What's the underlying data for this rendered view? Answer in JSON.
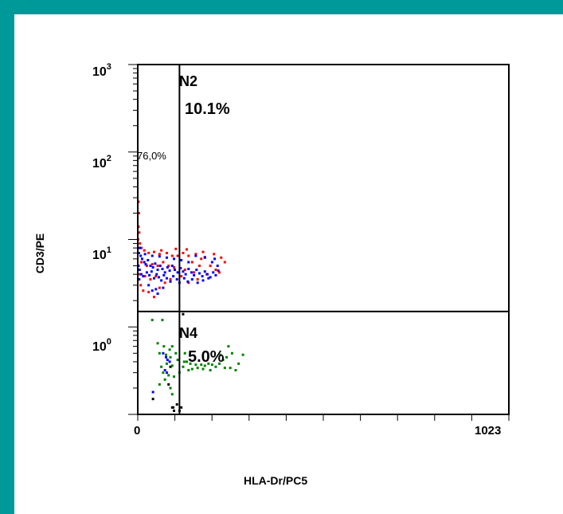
{
  "chart_data": {
    "type": "scatter",
    "xlabel": "HLA-Dr/PC5",
    "ylabel": "CD3/PE",
    "x_axis": {
      "scale": "linear",
      "range": [
        0,
        1023
      ],
      "tick_labels": [
        "0",
        "1023"
      ]
    },
    "y_axis": {
      "scale": "log",
      "range": [
        0.1,
        1000
      ],
      "tick_labels": [
        {
          "base": "10",
          "exp": "0"
        },
        {
          "base": "10",
          "exp": "1"
        },
        {
          "base": "10",
          "exp": "2"
        },
        {
          "base": "10",
          "exp": "3"
        }
      ]
    },
    "grid": false,
    "quadrant_gates": {
      "x": 115,
      "y": 1.5
    },
    "annotations": {
      "n2_label": "N2",
      "n2_pct": "10.1%",
      "n1_pct": "76,0%",
      "n4_label": "N4",
      "n4_pct": "5.0%"
    },
    "series_colors": {
      "red": "#ff0000",
      "blue": "#0000ff",
      "green": "#008000",
      "black": "#000000"
    },
    "series": [
      {
        "color": "red",
        "points": [
          [
            2,
            27
          ],
          [
            3,
            20
          ],
          [
            2,
            14
          ],
          [
            4,
            12
          ],
          [
            1,
            10
          ],
          [
            6,
            9
          ],
          [
            3,
            8
          ],
          [
            10,
            8
          ],
          [
            18,
            7.5
          ],
          [
            30,
            7
          ],
          [
            45,
            7.2
          ],
          [
            60,
            6.8
          ],
          [
            80,
            7
          ],
          [
            95,
            6.5
          ],
          [
            110,
            6.5
          ],
          [
            125,
            7
          ],
          [
            140,
            6.5
          ],
          [
            160,
            6.8
          ],
          [
            175,
            6
          ],
          [
            185,
            6.3
          ],
          [
            150,
            5.5
          ],
          [
            170,
            5
          ],
          [
            200,
            5
          ],
          [
            215,
            4.5
          ],
          [
            225,
            4.2
          ],
          [
            10,
            5.5
          ],
          [
            25,
            5
          ],
          [
            40,
            5.2
          ],
          [
            55,
            5
          ],
          [
            70,
            5.5
          ],
          [
            85,
            5
          ],
          [
            100,
            4.8
          ],
          [
            130,
            4.5
          ],
          [
            155,
            4.2
          ],
          [
            190,
            4
          ],
          [
            20,
            3.8
          ],
          [
            35,
            3.5
          ],
          [
            50,
            3.8
          ],
          [
            75,
            3.2
          ],
          [
            90,
            3.5
          ],
          [
            120,
            3.8
          ],
          [
            140,
            3.2
          ],
          [
            165,
            3.5
          ],
          [
            60,
            2.8
          ],
          [
            30,
            2.5
          ],
          [
            45,
            2.2
          ],
          [
            15,
            2.6
          ],
          [
            8,
            3
          ],
          [
            5,
            4
          ],
          [
            65,
            7.5
          ],
          [
            105,
            7.8
          ],
          [
            135,
            7.7
          ],
          [
            180,
            7.2
          ],
          [
            210,
            6.8
          ],
          [
            230,
            6.2
          ],
          [
            240,
            5.5
          ]
        ]
      },
      {
        "color": "blue",
        "points": [
          [
            3,
            7
          ],
          [
            8,
            6.5
          ],
          [
            12,
            6
          ],
          [
            18,
            5.5
          ],
          [
            22,
            5.2
          ],
          [
            28,
            5.8
          ],
          [
            35,
            5
          ],
          [
            42,
            4.8
          ],
          [
            48,
            5.3
          ],
          [
            55,
            4.5
          ],
          [
            62,
            5
          ],
          [
            68,
            4.6
          ],
          [
            75,
            4.2
          ],
          [
            82,
            4.8
          ],
          [
            88,
            4.4
          ],
          [
            95,
            5
          ],
          [
            102,
            4.5
          ],
          [
            110,
            4.2
          ],
          [
            118,
            4.7
          ],
          [
            125,
            4.3
          ],
          [
            132,
            4
          ],
          [
            140,
            4.6
          ],
          [
            148,
            4.2
          ],
          [
            155,
            3.9
          ],
          [
            162,
            4.5
          ],
          [
            170,
            4.1
          ],
          [
            178,
            3.8
          ],
          [
            185,
            4.3
          ],
          [
            192,
            4
          ],
          [
            200,
            3.7
          ],
          [
            208,
            4.2
          ],
          [
            215,
            3.9
          ],
          [
            222,
            4.4
          ],
          [
            5,
            4.5
          ],
          [
            10,
            4
          ],
          [
            15,
            3.8
          ],
          [
            25,
            4.2
          ],
          [
            32,
            3.9
          ],
          [
            38,
            4.3
          ],
          [
            45,
            3.6
          ],
          [
            52,
            4
          ],
          [
            58,
            3.7
          ],
          [
            65,
            3.4
          ],
          [
            72,
            3.9
          ],
          [
            80,
            3.6
          ],
          [
            90,
            3.3
          ],
          [
            98,
            3.8
          ],
          [
            108,
            3.5
          ],
          [
            115,
            3.2
          ],
          [
            128,
            3.6
          ],
          [
            138,
            3.3
          ],
          [
            150,
            3.5
          ],
          [
            165,
            3.2
          ],
          [
            180,
            3.4
          ],
          [
            195,
            3.6
          ],
          [
            205,
            5.5
          ],
          [
            212,
            6
          ],
          [
            220,
            5
          ],
          [
            185,
            6.2
          ],
          [
            160,
            6.5
          ],
          [
            140,
            5.5
          ],
          [
            120,
            5.8
          ],
          [
            100,
            6
          ],
          [
            80,
            6.2
          ],
          [
            60,
            6.4
          ],
          [
            40,
            6.5
          ],
          [
            20,
            6.8
          ],
          [
            6,
            8
          ],
          [
            2,
            5
          ],
          [
            4,
            3.5
          ],
          [
            30,
            3
          ],
          [
            50,
            2.7
          ],
          [
            70,
            2.8
          ],
          [
            55,
            2.4
          ],
          [
            40,
            2.6
          ]
        ]
      },
      {
        "color": "green",
        "points": [
          [
            40,
            1.2
          ],
          [
            68,
            1.2
          ],
          [
            55,
            0.65
          ],
          [
            72,
            0.6
          ],
          [
            88,
            0.55
          ],
          [
            95,
            0.6
          ],
          [
            60,
            0.5
          ],
          [
            78,
            0.48
          ],
          [
            90,
            0.45
          ],
          [
            105,
            0.5
          ],
          [
            110,
            0.42
          ],
          [
            80,
            0.38
          ],
          [
            95,
            0.36
          ],
          [
            65,
            0.35
          ],
          [
            70,
            0.3
          ],
          [
            85,
            0.28
          ],
          [
            100,
            0.27
          ],
          [
            75,
            0.25
          ],
          [
            60,
            0.22
          ],
          [
            90,
            0.2
          ],
          [
            95,
            0.17
          ],
          [
            115,
            0.3
          ],
          [
            125,
            0.35
          ],
          [
            128,
            0.4
          ],
          [
            135,
            0.4
          ],
          [
            145,
            0.38
          ],
          [
            160,
            0.37
          ],
          [
            175,
            0.37
          ],
          [
            185,
            0.36
          ],
          [
            195,
            0.38
          ],
          [
            205,
            0.37
          ],
          [
            215,
            0.35
          ],
          [
            225,
            0.38
          ],
          [
            235,
            0.42
          ],
          [
            228,
            0.48
          ],
          [
            245,
            0.45
          ],
          [
            260,
            0.5
          ],
          [
            278,
            0.38
          ],
          [
            290,
            0.48
          ],
          [
            270,
            0.32
          ],
          [
            255,
            0.34
          ],
          [
            240,
            0.34
          ],
          [
            200,
            0.32
          ],
          [
            180,
            0.33
          ],
          [
            165,
            0.34
          ],
          [
            150,
            0.33
          ],
          [
            140,
            0.32
          ],
          [
            250,
            0.6
          ],
          [
            130,
            0.5
          ]
        ]
      },
      {
        "color": "blue",
        "points": [
          [
            70,
            0.5
          ],
          [
            78,
            0.45
          ],
          [
            82,
            0.42
          ],
          [
            88,
            0.4
          ],
          [
            75,
            0.32
          ],
          [
            80,
            0.3
          ],
          [
            42,
            0.18
          ]
        ]
      },
      {
        "color": "black",
        "points": [
          [
            42,
            0.15
          ],
          [
            95,
            0.12
          ],
          [
            98,
            0.12
          ],
          [
            100,
            0.11
          ],
          [
            108,
            0.13
          ],
          [
            115,
            0.11
          ],
          [
            120,
            0.12
          ],
          [
            125,
            1.4
          ],
          [
            90,
            0.35
          ],
          [
            85,
            0.22
          ]
        ]
      }
    ]
  }
}
